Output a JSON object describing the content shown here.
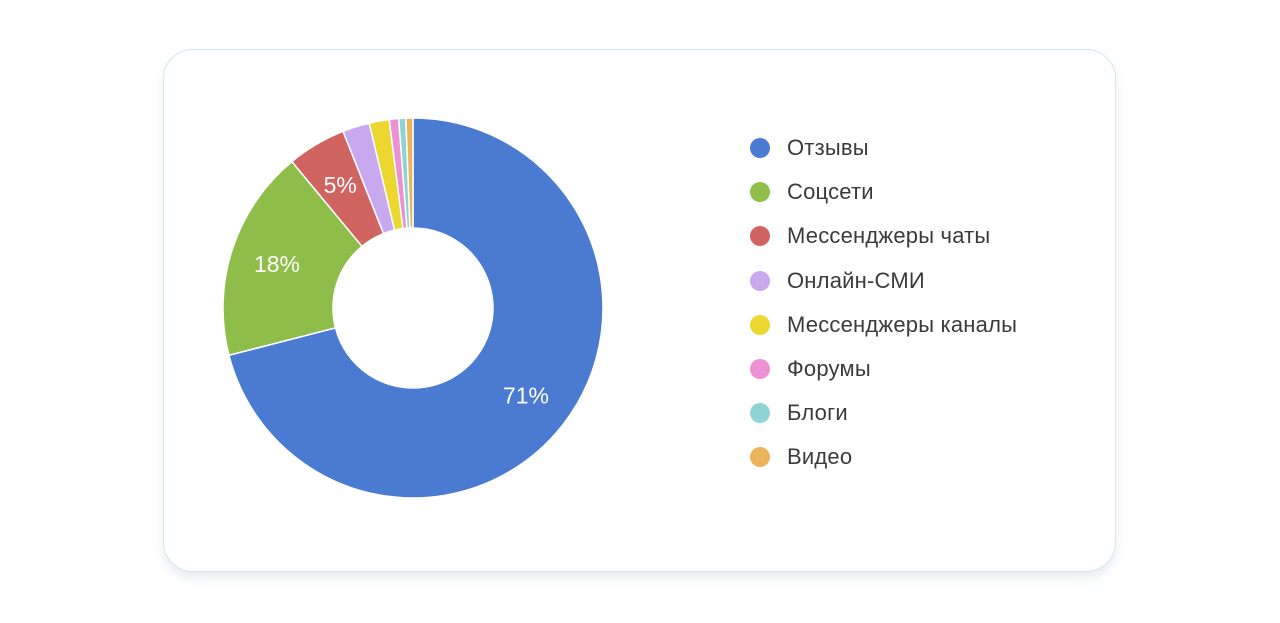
{
  "chart_data": {
    "type": "pie",
    "donut": true,
    "legend_position": "right",
    "slices": [
      {
        "name": "Отзывы",
        "value": 71,
        "color": "#4a7bd0",
        "label": "71%"
      },
      {
        "name": "Соцсети",
        "value": 18,
        "color": "#8fbd4a",
        "label": "18%"
      },
      {
        "name": "Мессенджеры чаты",
        "value": 5,
        "color": "#cf6460",
        "label": "5%"
      },
      {
        "name": "Онлайн-СМИ",
        "value": 2.3,
        "color": "#c8a8ee",
        "label": ""
      },
      {
        "name": "Мессенджеры каналы",
        "value": 1.7,
        "color": "#ecd630",
        "label": ""
      },
      {
        "name": "Форумы",
        "value": 0.8,
        "color": "#ee90d4",
        "label": ""
      },
      {
        "name": "Блоги",
        "value": 0.6,
        "color": "#8fd4d4",
        "label": ""
      },
      {
        "name": "Видео",
        "value": 0.6,
        "color": "#ecb45a",
        "label": ""
      }
    ]
  }
}
